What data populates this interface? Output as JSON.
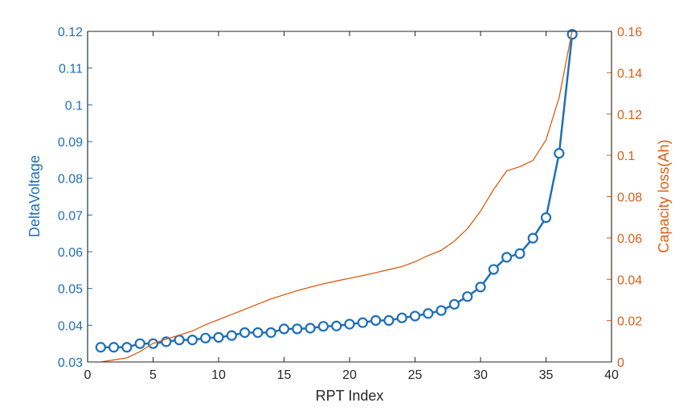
{
  "chart_data": {
    "type": "line",
    "xlabel": "RPT Index",
    "ylabel_left": "DeltaVoltage",
    "ylabel_right": "Capacity loss(Ah)",
    "xlim": [
      0,
      40
    ],
    "ylim_left": [
      0.03,
      0.12
    ],
    "ylim_right": [
      0,
      0.16
    ],
    "x_ticks": [
      "0",
      "5",
      "10",
      "15",
      "20",
      "25",
      "30",
      "35",
      "40"
    ],
    "y_left_ticks": [
      "0.03",
      "0.04",
      "0.05",
      "0.06",
      "0.07",
      "0.08",
      "0.09",
      "0.1",
      "0.11",
      "0.12"
    ],
    "y_right_ticks": [
      "0",
      "0.02",
      "0.04",
      "0.06",
      "0.08",
      "0.1",
      "0.12",
      "0.14",
      "0.16"
    ],
    "grid": false,
    "colors": {
      "left": "#1f6fb8",
      "right": "#d95f14"
    },
    "series": [
      {
        "axis": "left",
        "marker": "circle",
        "x": [
          1,
          2,
          3,
          4,
          5,
          6,
          7,
          8,
          9,
          10,
          11,
          12,
          13,
          14,
          15,
          16,
          17,
          18,
          19,
          20,
          21,
          22,
          23,
          24,
          25,
          26,
          27,
          28,
          29,
          30,
          31,
          32,
          33,
          34,
          35,
          36,
          37
        ],
        "values": [
          0.034,
          0.034,
          0.034,
          0.035,
          0.035,
          0.0355,
          0.036,
          0.036,
          0.0365,
          0.0367,
          0.0372,
          0.038,
          0.038,
          0.038,
          0.039,
          0.039,
          0.0392,
          0.0397,
          0.0398,
          0.0403,
          0.0407,
          0.0413,
          0.0413,
          0.042,
          0.0425,
          0.0432,
          0.044,
          0.0457,
          0.0478,
          0.0504,
          0.0552,
          0.0585,
          0.0595,
          0.0637,
          0.0693,
          0.0868,
          0.1192
        ]
      },
      {
        "axis": "right",
        "marker": "none",
        "x": [
          1,
          2,
          3,
          4,
          5,
          6,
          7,
          8,
          9,
          10,
          11,
          12,
          13,
          14,
          15,
          16,
          17,
          18,
          19,
          20,
          21,
          22,
          23,
          24,
          25,
          26,
          27,
          28,
          29,
          30,
          31,
          32,
          33,
          34,
          35,
          36,
          37
        ],
        "values": [
          0.0,
          0.001,
          0.002,
          0.005,
          0.009,
          0.011,
          0.013,
          0.015,
          0.018,
          0.0205,
          0.023,
          0.0255,
          0.028,
          0.0305,
          0.0325,
          0.0345,
          0.0362,
          0.0378,
          0.0392,
          0.0405,
          0.0418,
          0.0432,
          0.0447,
          0.0462,
          0.0485,
          0.0515,
          0.054,
          0.0585,
          0.0645,
          0.073,
          0.0835,
          0.0925,
          0.0945,
          0.0975,
          0.1075,
          0.128,
          0.1605
        ]
      }
    ]
  }
}
